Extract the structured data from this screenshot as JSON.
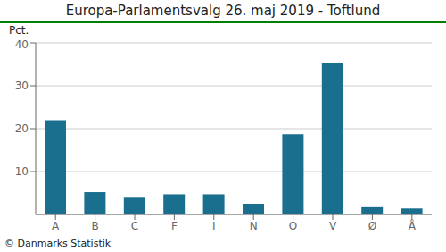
{
  "chart_data": {
    "type": "bar",
    "title": "Europa-Parlamentsvalg 26. maj 2019 - Toftlund",
    "categories": [
      "A",
      "B",
      "C",
      "F",
      "I",
      "N",
      "O",
      "V",
      "Ø",
      "Å"
    ],
    "values": [
      22.0,
      5.2,
      3.9,
      4.7,
      4.7,
      2.5,
      18.7,
      35.3,
      1.7,
      1.4
    ],
    "color": "#1a6e8e",
    "ylabel": "Pct.",
    "ylim": [
      0,
      40
    ],
    "yticks": [
      10,
      20,
      30,
      40
    ],
    "grid": true,
    "footer": "© Danmarks Statistik"
  }
}
